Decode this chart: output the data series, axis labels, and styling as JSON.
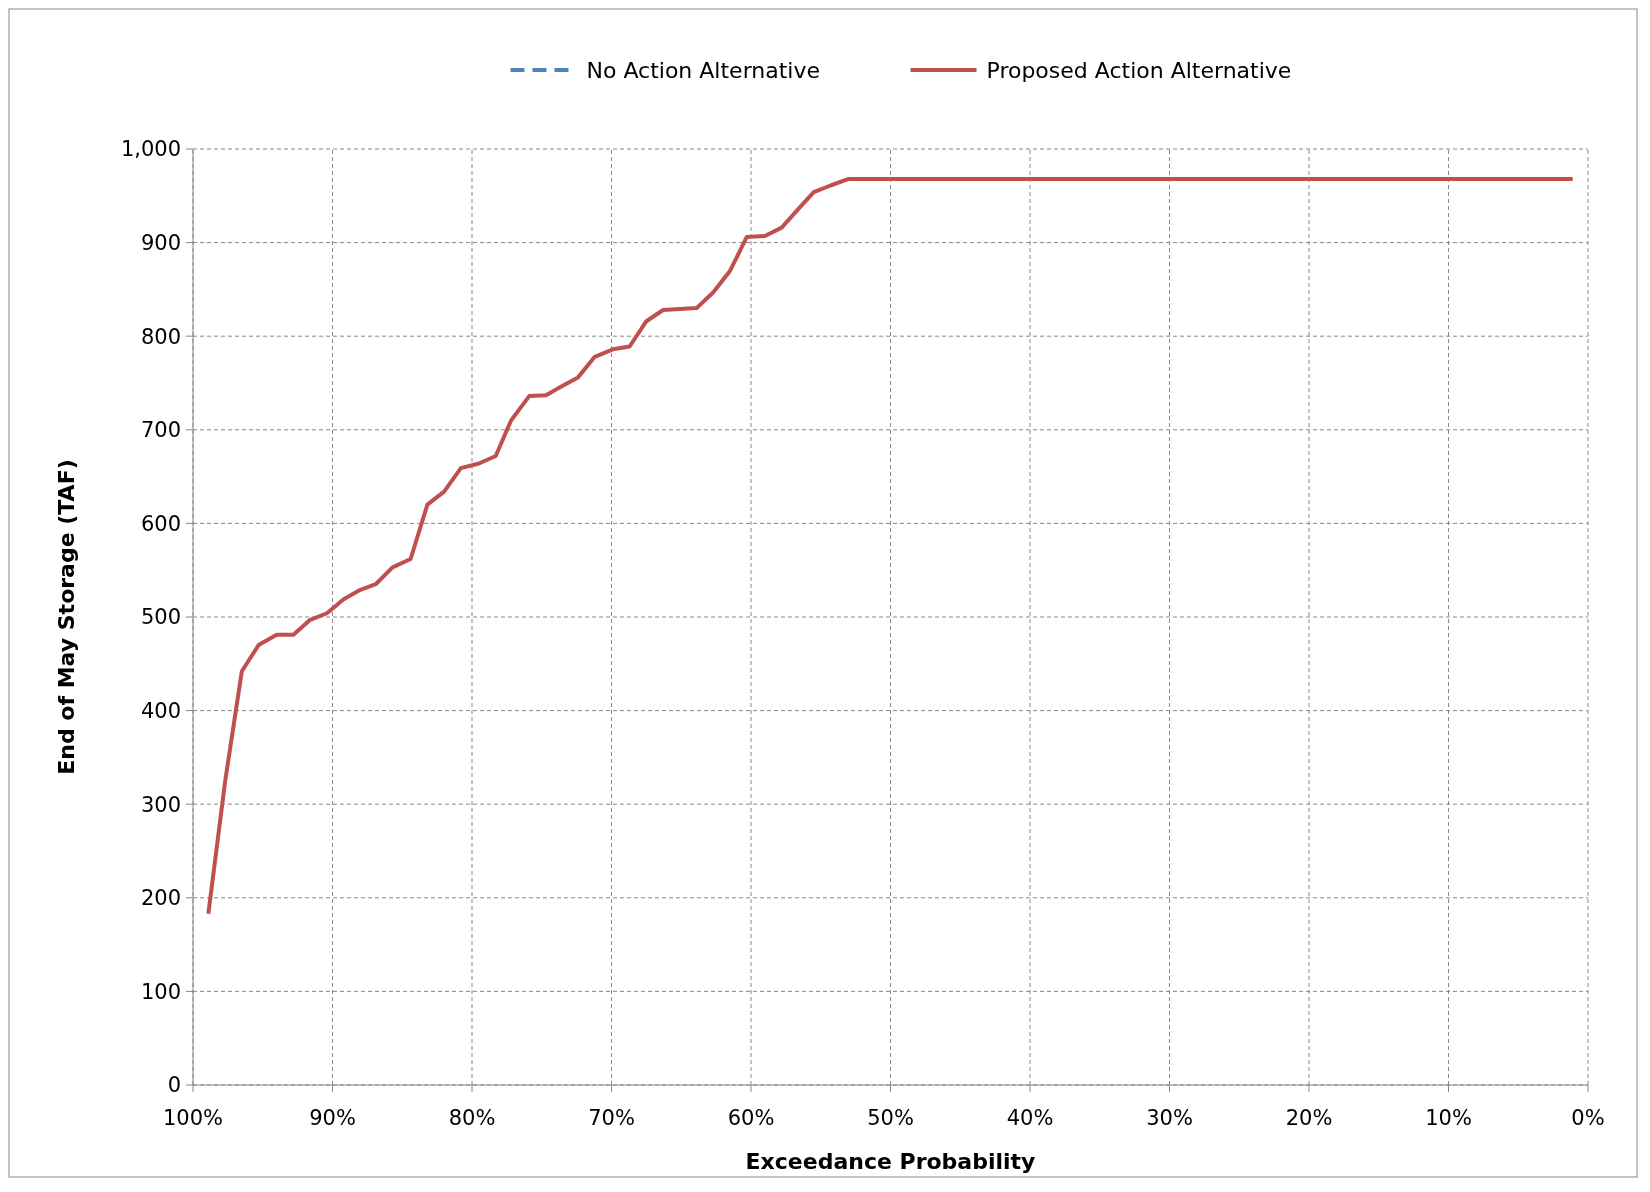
{
  "chart_data": {
    "type": "line",
    "xlabel": "Exceedance Probability",
    "ylabel": "End of May Storage (TAF)",
    "xlim": [
      100,
      0
    ],
    "xticks": [
      {
        "value": 100,
        "label": "100%"
      },
      {
        "value": 90,
        "label": "90%"
      },
      {
        "value": 80,
        "label": "80%"
      },
      {
        "value": 70,
        "label": "70%"
      },
      {
        "value": 60,
        "label": "60%"
      },
      {
        "value": 50,
        "label": "50%"
      },
      {
        "value": 40,
        "label": "40%"
      },
      {
        "value": 30,
        "label": "30%"
      },
      {
        "value": 20,
        "label": "20%"
      },
      {
        "value": 10,
        "label": "10%"
      },
      {
        "value": 0,
        "label": "0%"
      }
    ],
    "ylim": [
      0,
      1000
    ],
    "yticks": [
      0,
      100,
      200,
      300,
      400,
      500,
      600,
      700,
      800,
      900,
      {
        "value": 1000,
        "label": "1,000"
      }
    ],
    "grid": true,
    "legend": "top",
    "series": [
      {
        "name": "No Action Alternative",
        "color": "#4f81bd",
        "line_style": "dashed"
      },
      {
        "name": "Proposed Action Alternative",
        "color": "#c0504d",
        "line_style": "solid",
        "x": [
          98.9,
          97.7,
          96.5,
          95.3,
          94.0,
          92.8,
          91.6,
          90.4,
          89.2,
          88.0,
          86.9,
          85.7,
          84.4,
          83.2,
          82.0,
          80.8,
          79.5,
          78.3,
          77.2,
          75.9,
          74.7,
          73.5,
          72.4,
          71.2,
          69.9,
          68.7,
          67.5,
          66.3,
          65.1,
          63.9,
          62.7,
          61.5,
          60.3,
          59.0,
          57.8,
          56.6,
          55.5,
          54.3,
          53.0,
          1.1
        ],
        "values": [
          183,
          324,
          442,
          470,
          481,
          481,
          497,
          504,
          519,
          529,
          535,
          553,
          562,
          620,
          634,
          659,
          664,
          672,
          710,
          736,
          737,
          747,
          756,
          778,
          786,
          789,
          816,
          828,
          829,
          830,
          847,
          870,
          906,
          907,
          916,
          936,
          954,
          961,
          968,
          968
        ]
      }
    ]
  }
}
